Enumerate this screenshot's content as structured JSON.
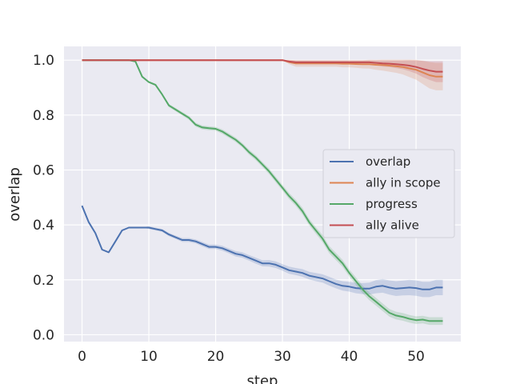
{
  "chart_data": {
    "type": "line",
    "title": "",
    "xlabel": "step",
    "ylabel": "overlap",
    "xlim": [
      -2.7,
      56.7
    ],
    "ylim": [
      -0.025,
      1.05
    ],
    "x_ticks": [
      0,
      10,
      20,
      30,
      40,
      50
    ],
    "y_ticks": [
      0.0,
      0.2,
      0.4,
      0.6,
      0.8,
      1.0
    ],
    "x_tick_labels": [
      "0",
      "10",
      "20",
      "30",
      "40",
      "50"
    ],
    "y_tick_labels": [
      "0.0",
      "0.2",
      "0.4",
      "0.6",
      "0.8",
      "1.0"
    ],
    "grid": true,
    "legend_position": "center-right",
    "background": "#eaeaf2",
    "series": [
      {
        "name": "overlap",
        "color": "#4c72b0",
        "x": [
          0,
          1,
          2,
          3,
          4,
          5,
          6,
          7,
          8,
          9,
          10,
          11,
          12,
          13,
          14,
          15,
          16,
          17,
          18,
          19,
          20,
          21,
          22,
          23,
          24,
          25,
          26,
          27,
          28,
          29,
          30,
          31,
          32,
          33,
          34,
          35,
          36,
          37,
          38,
          39,
          40,
          41,
          42,
          43,
          44,
          45,
          46,
          47,
          48,
          49,
          50,
          51,
          52,
          53,
          54
        ],
        "y": [
          0.47,
          0.41,
          0.37,
          0.31,
          0.3,
          0.34,
          0.38,
          0.39,
          0.39,
          0.39,
          0.39,
          0.385,
          0.38,
          0.365,
          0.355,
          0.345,
          0.345,
          0.34,
          0.33,
          0.32,
          0.32,
          0.315,
          0.305,
          0.295,
          0.29,
          0.28,
          0.27,
          0.26,
          0.26,
          0.255,
          0.245,
          0.235,
          0.23,
          0.225,
          0.215,
          0.21,
          0.205,
          0.195,
          0.185,
          0.178,
          0.175,
          0.17,
          0.168,
          0.168,
          0.175,
          0.178,
          0.172,
          0.168,
          0.17,
          0.172,
          0.17,
          0.165,
          0.165,
          0.172,
          0.172
        ],
        "band": [
          0.0,
          0.0,
          0.0,
          0.0,
          0.0,
          0.0,
          0.0,
          0.0,
          0.0,
          0.0,
          0.005,
          0.005,
          0.005,
          0.006,
          0.006,
          0.007,
          0.007,
          0.007,
          0.008,
          0.008,
          0.008,
          0.009,
          0.009,
          0.01,
          0.01,
          0.01,
          0.011,
          0.011,
          0.012,
          0.012,
          0.012,
          0.013,
          0.013,
          0.014,
          0.014,
          0.015,
          0.015,
          0.016,
          0.016,
          0.017,
          0.018,
          0.019,
          0.02,
          0.022,
          0.024,
          0.025,
          0.026,
          0.027,
          0.027,
          0.028,
          0.028,
          0.028,
          0.028,
          0.028,
          0.028
        ]
      },
      {
        "name": "ally in scope",
        "color": "#dd8452",
        "x": [
          0,
          1,
          2,
          3,
          4,
          5,
          6,
          7,
          8,
          9,
          10,
          11,
          12,
          13,
          14,
          15,
          16,
          17,
          18,
          19,
          20,
          21,
          22,
          23,
          24,
          25,
          26,
          27,
          28,
          29,
          30,
          31,
          32,
          33,
          34,
          35,
          36,
          37,
          38,
          39,
          40,
          41,
          42,
          43,
          44,
          45,
          46,
          47,
          48,
          49,
          50,
          51,
          52,
          53,
          54
        ],
        "y": [
          1.0,
          1.0,
          1.0,
          1.0,
          1.0,
          1.0,
          1.0,
          1.0,
          1.0,
          1.0,
          1.0,
          1.0,
          1.0,
          1.0,
          1.0,
          1.0,
          1.0,
          1.0,
          1.0,
          1.0,
          1.0,
          1.0,
          1.0,
          1.0,
          1.0,
          1.0,
          1.0,
          1.0,
          1.0,
          1.0,
          1.0,
          0.993,
          0.988,
          0.988,
          0.988,
          0.988,
          0.988,
          0.988,
          0.988,
          0.987,
          0.987,
          0.986,
          0.985,
          0.985,
          0.983,
          0.982,
          0.98,
          0.978,
          0.975,
          0.97,
          0.965,
          0.955,
          0.945,
          0.94,
          0.94
        ],
        "band": [
          0,
          0,
          0,
          0,
          0,
          0,
          0,
          0,
          0,
          0,
          0,
          0,
          0,
          0,
          0,
          0,
          0,
          0,
          0,
          0,
          0,
          0,
          0,
          0,
          0,
          0,
          0,
          0,
          0,
          0,
          0.0,
          0.008,
          0.012,
          0.012,
          0.012,
          0.012,
          0.012,
          0.012,
          0.012,
          0.013,
          0.013,
          0.014,
          0.015,
          0.016,
          0.018,
          0.02,
          0.022,
          0.024,
          0.027,
          0.032,
          0.036,
          0.042,
          0.048,
          0.05,
          0.05
        ]
      },
      {
        "name": "progress",
        "color": "#55a868",
        "x": [
          0,
          1,
          2,
          3,
          4,
          5,
          6,
          7,
          8,
          9,
          10,
          11,
          12,
          13,
          14,
          15,
          16,
          17,
          18,
          19,
          20,
          21,
          22,
          23,
          24,
          25,
          26,
          27,
          28,
          29,
          30,
          31,
          32,
          33,
          34,
          35,
          36,
          37,
          38,
          39,
          40,
          41,
          42,
          43,
          44,
          45,
          46,
          47,
          48,
          49,
          50,
          51,
          52,
          53,
          54
        ],
        "y": [
          1.0,
          1.0,
          1.0,
          1.0,
          1.0,
          1.0,
          1.0,
          1.0,
          0.995,
          0.94,
          0.92,
          0.91,
          0.875,
          0.835,
          0.82,
          0.805,
          0.79,
          0.765,
          0.755,
          0.752,
          0.75,
          0.74,
          0.725,
          0.71,
          0.69,
          0.665,
          0.645,
          0.62,
          0.595,
          0.565,
          0.535,
          0.505,
          0.48,
          0.45,
          0.41,
          0.38,
          0.35,
          0.31,
          0.285,
          0.26,
          0.225,
          0.195,
          0.165,
          0.14,
          0.12,
          0.1,
          0.08,
          0.07,
          0.065,
          0.058,
          0.053,
          0.055,
          0.05,
          0.05,
          0.05
        ],
        "band": [
          0,
          0,
          0,
          0,
          0,
          0,
          0,
          0,
          0,
          0.002,
          0.003,
          0.004,
          0.005,
          0.006,
          0.006,
          0.006,
          0.007,
          0.007,
          0.007,
          0.007,
          0.007,
          0.008,
          0.008,
          0.008,
          0.008,
          0.009,
          0.009,
          0.009,
          0.01,
          0.01,
          0.01,
          0.011,
          0.011,
          0.012,
          0.012,
          0.012,
          0.013,
          0.013,
          0.013,
          0.013,
          0.013,
          0.014,
          0.014,
          0.014,
          0.014,
          0.014,
          0.014,
          0.014,
          0.014,
          0.014,
          0.014,
          0.014,
          0.014,
          0.014,
          0.014
        ]
      },
      {
        "name": "ally alive",
        "color": "#c44e52",
        "x": [
          0,
          1,
          2,
          3,
          4,
          5,
          6,
          7,
          8,
          9,
          10,
          11,
          12,
          13,
          14,
          15,
          16,
          17,
          18,
          19,
          20,
          21,
          22,
          23,
          24,
          25,
          26,
          27,
          28,
          29,
          30,
          31,
          32,
          33,
          34,
          35,
          36,
          37,
          38,
          39,
          40,
          41,
          42,
          43,
          44,
          45,
          46,
          47,
          48,
          49,
          50,
          51,
          52,
          53,
          54
        ],
        "y": [
          1.0,
          1.0,
          1.0,
          1.0,
          1.0,
          1.0,
          1.0,
          1.0,
          1.0,
          1.0,
          1.0,
          1.0,
          1.0,
          1.0,
          1.0,
          1.0,
          1.0,
          1.0,
          1.0,
          1.0,
          1.0,
          1.0,
          1.0,
          1.0,
          1.0,
          1.0,
          1.0,
          1.0,
          1.0,
          1.0,
          1.0,
          0.995,
          0.992,
          0.992,
          0.992,
          0.992,
          0.992,
          0.992,
          0.992,
          0.992,
          0.992,
          0.992,
          0.992,
          0.992,
          0.99,
          0.988,
          0.987,
          0.985,
          0.983,
          0.98,
          0.975,
          0.968,
          0.962,
          0.958,
          0.958
        ],
        "band": [
          0,
          0,
          0,
          0,
          0,
          0,
          0,
          0,
          0,
          0,
          0,
          0,
          0,
          0,
          0,
          0,
          0,
          0,
          0,
          0,
          0,
          0,
          0,
          0,
          0,
          0,
          0,
          0,
          0,
          0,
          0.0,
          0.005,
          0.007,
          0.007,
          0.007,
          0.007,
          0.007,
          0.007,
          0.007,
          0.007,
          0.007,
          0.007,
          0.007,
          0.008,
          0.009,
          0.011,
          0.012,
          0.014,
          0.016,
          0.02,
          0.024,
          0.03,
          0.034,
          0.038,
          0.038
        ]
      }
    ]
  }
}
